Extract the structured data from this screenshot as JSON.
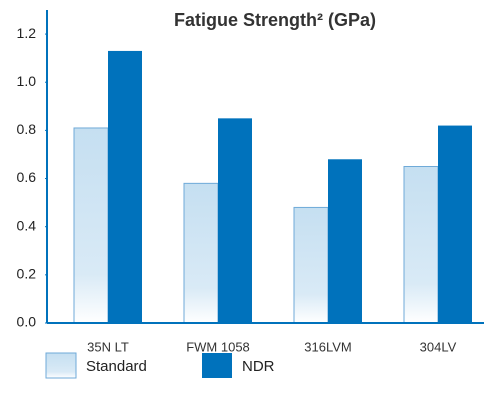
{
  "chart_data": {
    "type": "bar",
    "title": "Fatigue Strength² (GPa)",
    "categories": [
      "35N LT",
      "FWM 1058",
      "316LVM",
      "304LV"
    ],
    "series": [
      {
        "name": "Standard",
        "color": "#c5dff1",
        "values": [
          0.81,
          0.58,
          0.48,
          0.65
        ]
      },
      {
        "name": "NDR",
        "color": "#0072bc",
        "values": [
          1.13,
          0.85,
          0.68,
          0.82
        ]
      }
    ],
    "ylim": [
      0,
      1.3
    ],
    "yticks": [
      {
        "value": 0,
        "label": "0.0"
      },
      0.2,
      0.4,
      0.6,
      0.8,
      {
        "value": 1,
        "label": "1.0"
      },
      1.2
    ]
  }
}
